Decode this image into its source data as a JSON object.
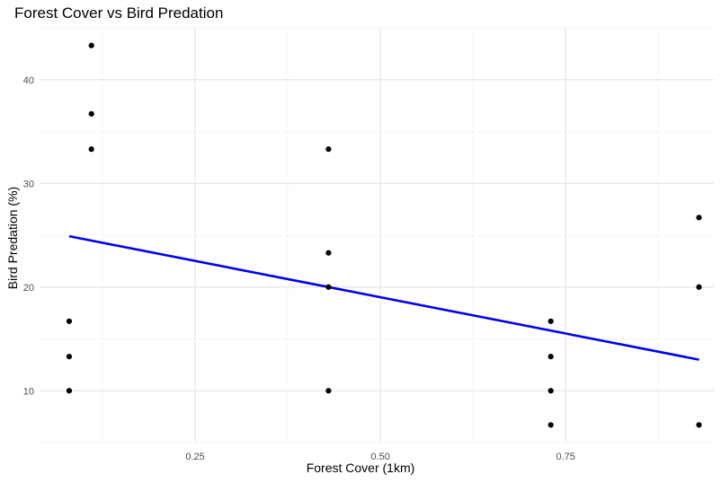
{
  "chart_data": {
    "type": "scatter",
    "title": "Forest Cover vs Bird Predation",
    "xlabel": "Forest Cover (1km)",
    "ylabel": "Bird Predation (%)",
    "xlim": [
      0.04,
      0.95
    ],
    "ylim": [
      5.0,
      45.0
    ],
    "x_ticks": [
      0.25,
      0.5,
      0.75
    ],
    "x_tick_labels": [
      "0.25",
      "0.50",
      "0.75"
    ],
    "y_ticks": [
      10,
      20,
      30,
      40
    ],
    "y_tick_labels": [
      "10",
      "20",
      "30",
      "40"
    ],
    "grid": true,
    "points": [
      {
        "x": 0.08,
        "y": 16.7
      },
      {
        "x": 0.08,
        "y": 13.3
      },
      {
        "x": 0.08,
        "y": 10.0
      },
      {
        "x": 0.11,
        "y": 43.3
      },
      {
        "x": 0.11,
        "y": 36.7
      },
      {
        "x": 0.11,
        "y": 33.3
      },
      {
        "x": 0.43,
        "y": 33.3
      },
      {
        "x": 0.43,
        "y": 23.3
      },
      {
        "x": 0.43,
        "y": 20.0
      },
      {
        "x": 0.43,
        "y": 10.0
      },
      {
        "x": 0.73,
        "y": 16.7
      },
      {
        "x": 0.73,
        "y": 13.3
      },
      {
        "x": 0.73,
        "y": 10.0
      },
      {
        "x": 0.73,
        "y": 6.7
      },
      {
        "x": 0.93,
        "y": 26.7
      },
      {
        "x": 0.93,
        "y": 20.0
      },
      {
        "x": 0.93,
        "y": 6.7
      }
    ],
    "trend_line": {
      "x": [
        0.08,
        0.93
      ],
      "y": [
        24.9,
        13.0
      ]
    },
    "colors": {
      "points": "#000000",
      "trend_line": "#0000ee",
      "grid_major": "#e6e6e6",
      "grid_minor": "#f2f2f2"
    }
  }
}
